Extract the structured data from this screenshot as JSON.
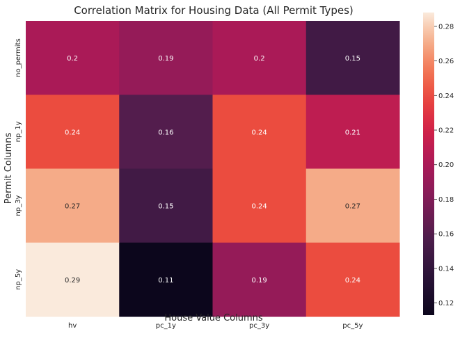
{
  "chart_data": {
    "type": "heatmap",
    "title": "Correlation Matrix for Housing Data (All Permit Types)",
    "xlabel": "House Value Columns",
    "ylabel": "Permit Columns",
    "x_categories": [
      "hv",
      "pc_1y",
      "pc_3y",
      "pc_5y"
    ],
    "y_categories": [
      "no_permits",
      "np_1y",
      "np_3y",
      "np_5y"
    ],
    "values": [
      [
        0.2,
        0.19,
        0.2,
        0.15
      ],
      [
        0.24,
        0.16,
        0.24,
        0.21
      ],
      [
        0.27,
        0.15,
        0.24,
        0.27
      ],
      [
        0.29,
        0.11,
        0.19,
        0.24
      ]
    ],
    "value_labels": [
      [
        "0.2",
        "0.19",
        "0.2",
        "0.15"
      ],
      [
        "0.24",
        "0.16",
        "0.24",
        "0.21"
      ],
      [
        "0.27",
        "0.15",
        "0.24",
        "0.27"
      ],
      [
        "0.29",
        "0.11",
        "0.19",
        "0.24"
      ]
    ],
    "colorbar": {
      "colormap": "rocket",
      "vmin": 0.113,
      "vmax": 0.288,
      "ticks": [
        "0.12",
        "0.14",
        "0.16",
        "0.18",
        "0.20",
        "0.22",
        "0.24",
        "0.26",
        "0.28"
      ]
    }
  }
}
